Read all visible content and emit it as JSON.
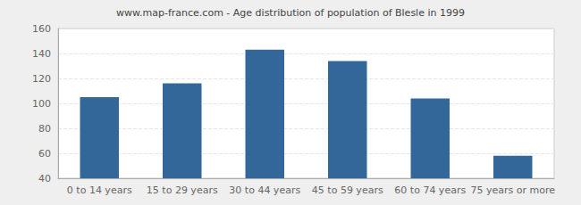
{
  "chart_data": {
    "type": "bar",
    "title": "www.map-france.com - Age distribution of population of Blesle in 1999",
    "categories": [
      "0 to 14 years",
      "15 to 29 years",
      "30 to 44 years",
      "45 to 59 years",
      "60 to 74 years",
      "75 years or more"
    ],
    "values": [
      105,
      116,
      143,
      134,
      104,
      58
    ],
    "color": "#336699",
    "ylim": [
      40,
      160
    ],
    "yticks": [
      40,
      60,
      80,
      100,
      120,
      140,
      160
    ],
    "grid": true
  }
}
